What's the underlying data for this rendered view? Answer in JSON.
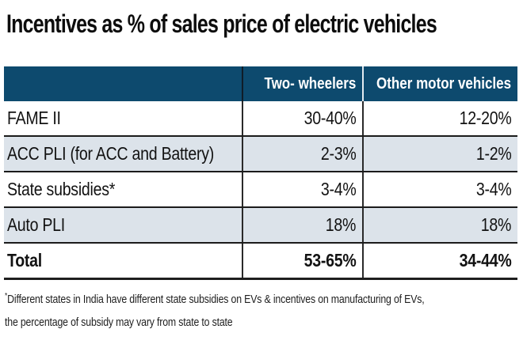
{
  "title": "Incentives as % of sales price of electric vehicles",
  "colors": {
    "header_background": "#0d4a6e",
    "header_text": "#ffffff",
    "zebra_row_background": "#dce3ea",
    "separator_line": "#1b1b1b",
    "body_text": "#121212"
  },
  "table": {
    "header": {
      "col1": "",
      "col2": "Two- wheelers",
      "col3": "Other motor vehicles"
    },
    "rows": [
      {
        "label": "FAME II",
        "two_wheelers": "30-40%",
        "other_motor_vehicles": "12-20%"
      },
      {
        "label": "ACC PLI (for ACC and Battery)",
        "two_wheelers": "2-3%",
        "other_motor_vehicles": "1-2%"
      },
      {
        "label": "State subsidies*",
        "two_wheelers": "3-4%",
        "other_motor_vehicles": "3-4%"
      },
      {
        "label": "Auto PLI",
        "two_wheelers": "18%",
        "other_motor_vehicles": "18%"
      },
      {
        "label": "Total",
        "two_wheelers": "53-65%",
        "other_motor_vehicles": "34-44%"
      }
    ]
  },
  "footnote": {
    "asterisk": "*",
    "line1": "Different states in India have different state subsidies on EVs & incentives on manufacturing of EVs,",
    "line2": "the percentage of subsidy may vary from state to state"
  },
  "chart_data": {
    "type": "table",
    "title": "Incentives as % of sales price of electric vehicles",
    "columns": [
      "",
      "Two- wheelers",
      "Other motor vehicles"
    ],
    "rows": [
      [
        "FAME II",
        "30-40%",
        "12-20%"
      ],
      [
        "ACC PLI (for ACC and Battery)",
        "2-3%",
        "1-2%"
      ],
      [
        "State subsidies*",
        "3-4%",
        "3-4%"
      ],
      [
        "Auto PLI",
        "18%",
        "18%"
      ],
      [
        "Total",
        "53-65%",
        "34-44%"
      ]
    ],
    "footnote": "*Different states in India have different state subsidies on EVs & incentives on manufacturing of EVs, the percentage of subsidy may vary from state to state",
    "layout": {
      "zebra_rows": [
        1,
        3
      ],
      "bold_rows": [
        4
      ],
      "value_alignment": "right"
    }
  }
}
